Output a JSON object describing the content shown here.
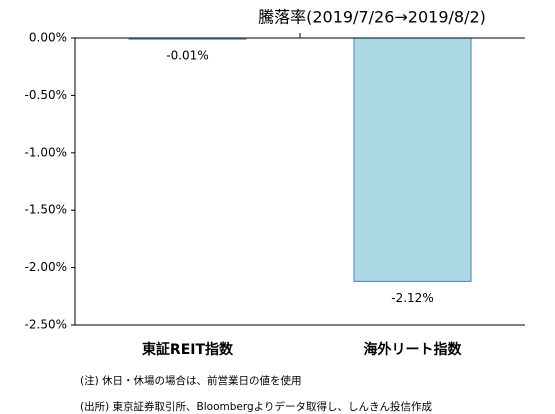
{
  "chart_data": {
    "type": "bar",
    "title": "騰落率(2019/7/26→2019/8/2)",
    "categories": [
      "東証REIT指数",
      "海外リート指数"
    ],
    "values": [
      -0.01,
      -2.12
    ],
    "value_labels": [
      "-0.01%",
      "-2.12%"
    ],
    "color": "#add8e6",
    "edge_color": "#4a7ebb",
    "ylim": [
      -2.5,
      0
    ],
    "yticks": [
      {
        "value": 0,
        "label": "0.00%"
      },
      {
        "value": -0.5,
        "label": "-0.50%"
      },
      {
        "value": -1,
        "label": "-1.00%"
      },
      {
        "value": -1.5,
        "label": "-1.50%"
      },
      {
        "value": -2,
        "label": "-2.00%"
      },
      {
        "value": -2.5,
        "label": "-2.50%"
      }
    ],
    "grid": false,
    "notes": [
      "(注) 休日・休場の場合は、前営業日の値を使用",
      "(出所) 東京証券取引所、Bloombergよりデータ取得し、しんきん投信作成"
    ]
  }
}
